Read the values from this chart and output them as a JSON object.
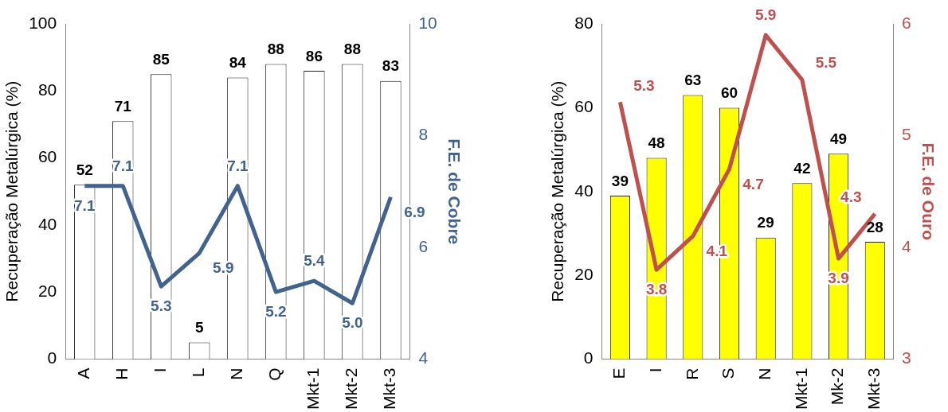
{
  "chart_data": [
    {
      "type": "bar",
      "categories": [
        "A",
        "H",
        "I",
        "L",
        "N",
        "Q",
        "Mkt-1",
        "Mkt-2",
        "Mkt-3"
      ],
      "ylabel": "Recuperação Metalúrgica (%)",
      "y2label": "F.E. de Cobre",
      "ylim": [
        0,
        100
      ],
      "yticks": [
        0,
        20,
        40,
        60,
        80,
        100
      ],
      "y2lim": [
        4,
        10
      ],
      "y2ticks": [
        4,
        6,
        8,
        10
      ],
      "grid": false,
      "legend": false,
      "data_labels": true,
      "series": [
        {
          "color": "#ffffff",
          "values": [
            52,
            71,
            85,
            5,
            84,
            88,
            86,
            88,
            83
          ]
        },
        {
          "type": "line",
          "axis": "y2",
          "color": "#41638f",
          "values": [
            7.1,
            7.1,
            5.3,
            5.9,
            7.1,
            5.2,
            5.4,
            5.0,
            6.9
          ],
          "value_labels": [
            "7.1",
            "7.1",
            "5.3",
            "5.9",
            "7.1",
            "5.2",
            "5.4",
            "5.0",
            "6.9"
          ]
        }
      ]
    },
    {
      "type": "bar",
      "categories": [
        "E",
        "I",
        "R",
        "S",
        "N",
        "Mkt-1",
        "Mk-2",
        "Mkt-3"
      ],
      "ylabel": "Recuperação Metalúrgica (%)",
      "y2label": "F.E. de Ouro",
      "ylim": [
        0,
        80
      ],
      "yticks": [
        0,
        20,
        40,
        60,
        80
      ],
      "y2lim": [
        3,
        6
      ],
      "y2ticks": [
        3,
        4,
        5,
        6
      ],
      "grid": false,
      "legend": false,
      "data_labels": true,
      "series": [
        {
          "color": "#ffff00",
          "values": [
            39,
            48,
            63,
            60,
            29,
            42,
            49,
            28
          ]
        },
        {
          "type": "line",
          "axis": "y2",
          "color": "#c0504d",
          "values": [
            5.3,
            3.8,
            4.1,
            4.7,
            5.9,
            5.5,
            3.9,
            4.3
          ]
        }
      ]
    }
  ]
}
